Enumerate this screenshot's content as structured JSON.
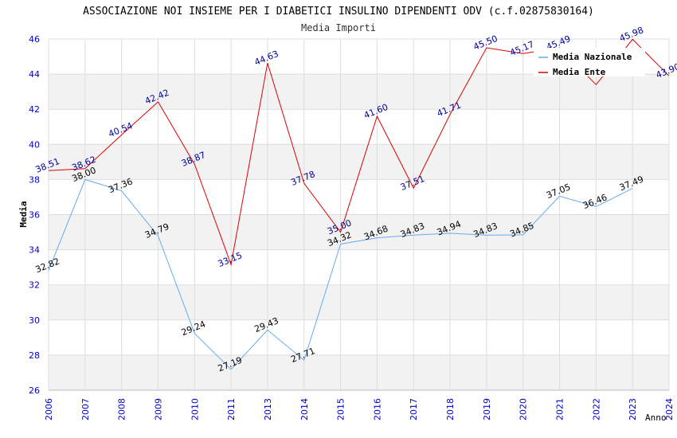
{
  "chart_data": {
    "type": "line",
    "title": "ASSOCIAZIONE NOI INSIEME PER I DIABETICI INSULINO DIPENDENTI ODV (c.f.02875830164)",
    "subtitle": "Media Importi",
    "xlabel": "Anno",
    "ylabel": "Media",
    "ylim": [
      26,
      46
    ],
    "yticks": [
      "26",
      "28",
      "30",
      "32",
      "34",
      "36",
      "38",
      "40",
      "42",
      "44",
      "46"
    ],
    "categories": [
      "2006",
      "2007",
      "2008",
      "2009",
      "2010",
      "2011",
      "2013",
      "2014",
      "2015",
      "2016",
      "2017",
      "2018",
      "2019",
      "2020",
      "2021",
      "2022",
      "2023",
      "2024"
    ],
    "legend_position": "top-right",
    "series": [
      {
        "name": "Media Nazionale",
        "color": "#66aaee",
        "label_color": "#000000",
        "values": [
          32.82,
          38.0,
          37.36,
          34.79,
          29.24,
          27.19,
          29.43,
          27.71,
          34.32,
          34.68,
          34.83,
          34.94,
          34.83,
          34.85,
          37.05,
          36.46,
          37.49,
          null
        ],
        "labels": [
          "32.82",
          "38.00",
          "37.36",
          "34.79",
          "29.24",
          "27.19",
          "29.43",
          "27.71",
          "34.32",
          "34.68",
          "34.83",
          "34.94",
          "34.83",
          "34.85",
          "37.05",
          "36.46",
          "37.49",
          ""
        ]
      },
      {
        "name": "Media Ente",
        "color": "#dd0000",
        "label_color": "#000099",
        "values": [
          38.51,
          38.62,
          40.54,
          42.42,
          38.87,
          33.15,
          44.63,
          37.78,
          35.0,
          41.6,
          37.51,
          41.71,
          45.5,
          45.17,
          45.49,
          43.4,
          45.98,
          43.9
        ],
        "labels": [
          "38.51",
          "38.62",
          "40.54",
          "42.42",
          "38.87",
          "33.15",
          "44.63",
          "37.78",
          "35.00",
          "41.60",
          "37.51",
          "41.71",
          "45.50",
          "45.17",
          "45.49",
          "",
          "45.98",
          "43.90"
        ]
      }
    ]
  }
}
